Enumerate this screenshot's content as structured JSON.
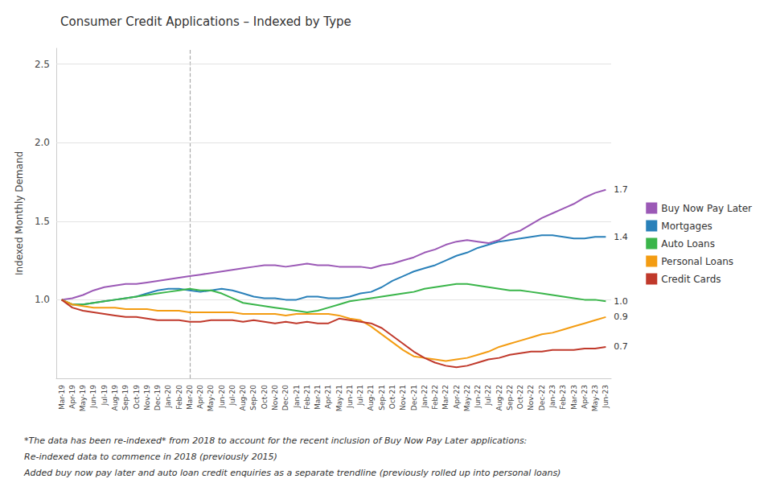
{
  "chart_data": {
    "type": "line",
    "title": "Consumer Credit Applications – Indexed by Type",
    "y_label": "Indexed Monthly Demand",
    "categories": [
      "Mar-19",
      "Apr-19",
      "May-19",
      "Jun-19",
      "Jul-19",
      "Aug-19",
      "Sep-19",
      "Oct-19",
      "Nov-19",
      "Dec-19",
      "Jan-20",
      "Feb-20",
      "Mar-20",
      "Apr-20",
      "May-20",
      "Jun-20",
      "Jul-20",
      "Aug-20",
      "Sep-20",
      "Oct-20",
      "Nov-20",
      "Dec-20",
      "Jan-21",
      "Feb-21",
      "Mar-21",
      "Apr-21",
      "May-21",
      "Jun-21",
      "Jul-21",
      "Aug-21",
      "Sep-21",
      "Oct-21",
      "Nov-21",
      "Dec-21",
      "Jan-22",
      "Feb-22",
      "Mar-22",
      "Apr-22",
      "May-22",
      "Jun-22",
      "Jul-22",
      "Aug-22",
      "Sep-22",
      "Oct-22",
      "Nov-22",
      "Dec-22",
      "Jan-23",
      "Feb-23",
      "Mar-23",
      "Apr-23",
      "May-23",
      "Jun-23"
    ],
    "series": [
      {
        "name": "Buy Now Pay Later",
        "color": "#9b59b6",
        "values": [
          1.0,
          1.01,
          1.03,
          1.06,
          1.08,
          1.09,
          1.1,
          1.1,
          1.11,
          1.12,
          1.13,
          1.14,
          1.15,
          1.16,
          1.17,
          1.18,
          1.19,
          1.2,
          1.21,
          1.22,
          1.22,
          1.21,
          1.22,
          1.23,
          1.22,
          1.22,
          1.21,
          1.21,
          1.21,
          1.2,
          1.22,
          1.23,
          1.25,
          1.27,
          1.3,
          1.32,
          1.35,
          1.37,
          1.38,
          1.37,
          1.36,
          1.38,
          1.42,
          1.44,
          1.48,
          1.52,
          1.55,
          1.58,
          1.61,
          1.65,
          1.68,
          1.7
        ]
      },
      {
        "name": "Mortgages",
        "color": "#2980b9",
        "values": [
          1.0,
          0.97,
          0.97,
          0.98,
          0.99,
          1.0,
          1.01,
          1.02,
          1.04,
          1.06,
          1.07,
          1.07,
          1.06,
          1.05,
          1.06,
          1.07,
          1.06,
          1.04,
          1.02,
          1.01,
          1.01,
          1.0,
          1.0,
          1.02,
          1.02,
          1.01,
          1.01,
          1.02,
          1.04,
          1.05,
          1.08,
          1.12,
          1.15,
          1.18,
          1.2,
          1.22,
          1.25,
          1.28,
          1.3,
          1.33,
          1.35,
          1.37,
          1.38,
          1.39,
          1.4,
          1.41,
          1.41,
          1.4,
          1.39,
          1.39,
          1.4,
          1.4
        ]
      },
      {
        "name": "Auto Loans",
        "color": "#3ab54a",
        "values": [
          1.0,
          0.97,
          0.97,
          0.98,
          0.99,
          1.0,
          1.01,
          1.02,
          1.03,
          1.04,
          1.05,
          1.06,
          1.07,
          1.06,
          1.06,
          1.04,
          1.01,
          0.98,
          0.97,
          0.96,
          0.95,
          0.94,
          0.93,
          0.92,
          0.93,
          0.95,
          0.97,
          0.99,
          1.0,
          1.01,
          1.02,
          1.03,
          1.04,
          1.05,
          1.07,
          1.08,
          1.09,
          1.1,
          1.1,
          1.09,
          1.08,
          1.07,
          1.06,
          1.06,
          1.05,
          1.04,
          1.03,
          1.02,
          1.01,
          1.0,
          1.0,
          0.99
        ]
      },
      {
        "name": "Personal Loans",
        "color": "#f39c12",
        "values": [
          1.0,
          0.97,
          0.96,
          0.95,
          0.95,
          0.95,
          0.94,
          0.94,
          0.94,
          0.93,
          0.93,
          0.93,
          0.92,
          0.92,
          0.92,
          0.92,
          0.92,
          0.91,
          0.91,
          0.91,
          0.91,
          0.9,
          0.91,
          0.91,
          0.91,
          0.91,
          0.9,
          0.88,
          0.87,
          0.83,
          0.78,
          0.73,
          0.68,
          0.64,
          0.63,
          0.62,
          0.61,
          0.62,
          0.63,
          0.65,
          0.67,
          0.7,
          0.72,
          0.74,
          0.76,
          0.78,
          0.79,
          0.81,
          0.83,
          0.85,
          0.87,
          0.89
        ]
      },
      {
        "name": "Credit Cards",
        "color": "#c0392b",
        "values": [
          1.0,
          0.95,
          0.93,
          0.92,
          0.91,
          0.9,
          0.89,
          0.89,
          0.88,
          0.87,
          0.87,
          0.87,
          0.86,
          0.86,
          0.87,
          0.87,
          0.87,
          0.86,
          0.87,
          0.86,
          0.85,
          0.86,
          0.85,
          0.86,
          0.85,
          0.85,
          0.88,
          0.87,
          0.86,
          0.85,
          0.82,
          0.77,
          0.72,
          0.67,
          0.63,
          0.6,
          0.58,
          0.57,
          0.58,
          0.6,
          0.62,
          0.63,
          0.65,
          0.66,
          0.67,
          0.67,
          0.68,
          0.68,
          0.68,
          0.69,
          0.69,
          0.7
        ]
      }
    ],
    "ylim": [
      0.5,
      2.6
    ],
    "yticks": [
      {
        "value": 1.0,
        "label": "1.0"
      },
      {
        "value": 1.5,
        "label": "1.5"
      },
      {
        "value": 2.0,
        "label": "2.0"
      },
      {
        "value": 2.5,
        "label": "2.5"
      }
    ],
    "grid": true,
    "legend": "right",
    "annotations": [
      {
        "x": "Mar-20",
        "line_style": "dashed"
      },
      {
        "text": "1.0",
        "x": "Jun-23",
        "y": 0.99
      },
      {
        "text": "1.7",
        "x": "Jun-23",
        "y": 1.7
      },
      {
        "text": "0.7",
        "x": "Jun-23",
        "y": 0.7
      },
      {
        "text": "1.4",
        "x": "Jun-23",
        "y": 1.4
      },
      {
        "text": "0.9",
        "x": "Jun-23",
        "y": 0.89
      }
    ],
    "footnotes": [
      "*The data has been re-indexed* from 2018 to account for the recent inclusion of Buy Now Pay Later applications:",
      "Re-indexed data to commence in 2018 (previously 2015)",
      "Added buy now pay later and auto loan credit enquiries as a separate trendline (previously rolled up into personal loans)"
    ]
  }
}
